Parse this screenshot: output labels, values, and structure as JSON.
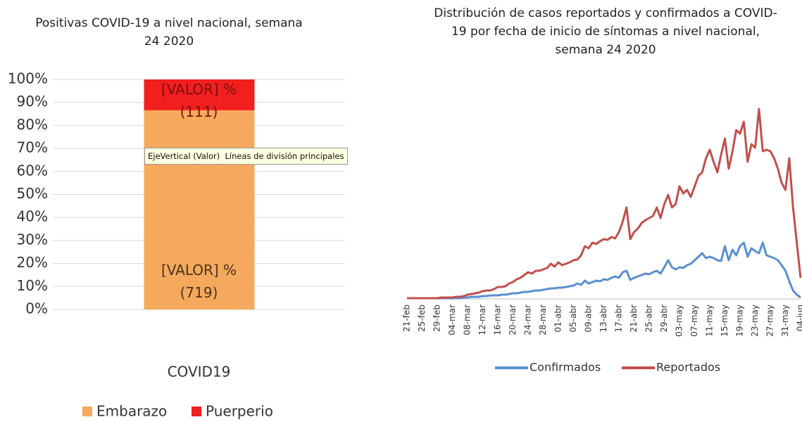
{
  "chart_data": [
    {
      "type": "bar",
      "stacked": true,
      "title": "Positivas COVID-19 a nivel nacional, semana 24 2020",
      "categories": [
        "COVID19"
      ],
      "series": [
        {
          "name": "Embarazo",
          "color": "#f4a95c",
          "values": [
            86.6
          ]
        },
        {
          "name": "Puerperio",
          "color": "#f21f1f",
          "values": [
            13.4
          ]
        }
      ],
      "annotations": [
        "[VALOR] % (719)",
        "[VALOR] % (111)"
      ],
      "tooltip": "EjeVertical (Valor)  Líneas de división principales",
      "ylim": [
        0,
        100
      ],
      "yticks": [
        {
          "value": 0,
          "label": "0%"
        },
        {
          "value": 10,
          "label": "10%"
        },
        {
          "value": 20,
          "label": "20%"
        },
        {
          "value": 30,
          "label": "30%"
        },
        {
          "value": 40,
          "label": "40%"
        },
        {
          "value": 50,
          "label": "50%"
        },
        {
          "value": 60,
          "label": "60%"
        },
        {
          "value": 70,
          "label": "70%"
        },
        {
          "value": 80,
          "label": "80%"
        },
        {
          "value": 90,
          "label": "90%"
        },
        {
          "value": 100,
          "label": "100%"
        }
      ],
      "grid": true,
      "legend": "bottom"
    },
    {
      "type": "line",
      "title": "Distribución de casos reportados y confirmados a COVID-19 por fecha de inicio de síntomas  a nivel nacional, semana 24 2020",
      "categories": [
        "21-feb",
        null,
        null,
        null,
        "25-feb",
        null,
        null,
        null,
        "29-feb",
        null,
        null,
        null,
        "04-mar",
        null,
        null,
        null,
        "08-mar",
        null,
        null,
        null,
        "12-mar",
        null,
        null,
        null,
        "16-mar",
        null,
        null,
        null,
        "20-mar",
        null,
        null,
        null,
        "24-mar",
        null,
        null,
        null,
        "28-mar",
        null,
        null,
        null,
        "01-abr",
        null,
        null,
        null,
        "05-abr",
        null,
        null,
        null,
        "09-abr",
        null,
        null,
        null,
        "13-abr",
        null,
        null,
        null,
        "17-abr",
        null,
        null,
        null,
        "21-abr",
        null,
        null,
        null,
        "25-abr",
        null,
        null,
        null,
        "29-abr",
        null,
        null,
        null,
        "03-may",
        null,
        null,
        null,
        "07-may",
        null,
        null,
        null,
        "11-may",
        null,
        null,
        null,
        "15-may",
        null,
        null,
        null,
        "19-may",
        null,
        null,
        null,
        "23-may",
        null,
        null,
        null,
        "27-may",
        null,
        null,
        null,
        "31-may",
        null,
        null,
        null,
        "04-jun"
      ],
      "series": [
        {
          "name": "Confirmados",
          "color": "#5b8fd0",
          "values": [
            1,
            1,
            1,
            1,
            1,
            1,
            1,
            1,
            1,
            1,
            1,
            1,
            1,
            1,
            1,
            2,
            2,
            3,
            3,
            3,
            4,
            4,
            5,
            5,
            5,
            6,
            6,
            7,
            8,
            8,
            9,
            10,
            10,
            11,
            12,
            12,
            13,
            14,
            15,
            15,
            16,
            16,
            17,
            18,
            19,
            22,
            20,
            26,
            22,
            24,
            26,
            25,
            28,
            27,
            30,
            32,
            30,
            38,
            40,
            27,
            30,
            32,
            34,
            36,
            35,
            38,
            40,
            36,
            45,
            55,
            45,
            42,
            45,
            44,
            48,
            50,
            55,
            60,
            65,
            58,
            60,
            58,
            55,
            54,
            75,
            55,
            70,
            62,
            75,
            80,
            60,
            72,
            68,
            65,
            80,
            62,
            60,
            58,
            55,
            48,
            40,
            25,
            12,
            6,
            2
          ]
        },
        {
          "name": "Reportados",
          "color": "#c0504d",
          "values": [
            1,
            1,
            1,
            1,
            1,
            1,
            1,
            1,
            1,
            2,
            2,
            2,
            2,
            3,
            3,
            4,
            6,
            7,
            8,
            9,
            11,
            12,
            12,
            14,
            17,
            17,
            18,
            22,
            24,
            28,
            30,
            34,
            38,
            36,
            40,
            40,
            42,
            44,
            50,
            46,
            52,
            48,
            50,
            52,
            55,
            56,
            62,
            75,
            72,
            80,
            78,
            82,
            85,
            84,
            88,
            86,
            95,
            110,
            130,
            85,
            95,
            100,
            108,
            112,
            115,
            118,
            130,
            115,
            135,
            148,
            130,
            135,
            160,
            150,
            155,
            145,
            160,
            175,
            180,
            200,
            212,
            195,
            180,
            205,
            228,
            185,
            210,
            240,
            235,
            252,
            195,
            220,
            215,
            270,
            210,
            212,
            210,
            200,
            185,
            165,
            155,
            200,
            130,
            80,
            30
          ]
        }
      ],
      "ylim": [
        0,
        300
      ],
      "legend": "bottom"
    }
  ]
}
